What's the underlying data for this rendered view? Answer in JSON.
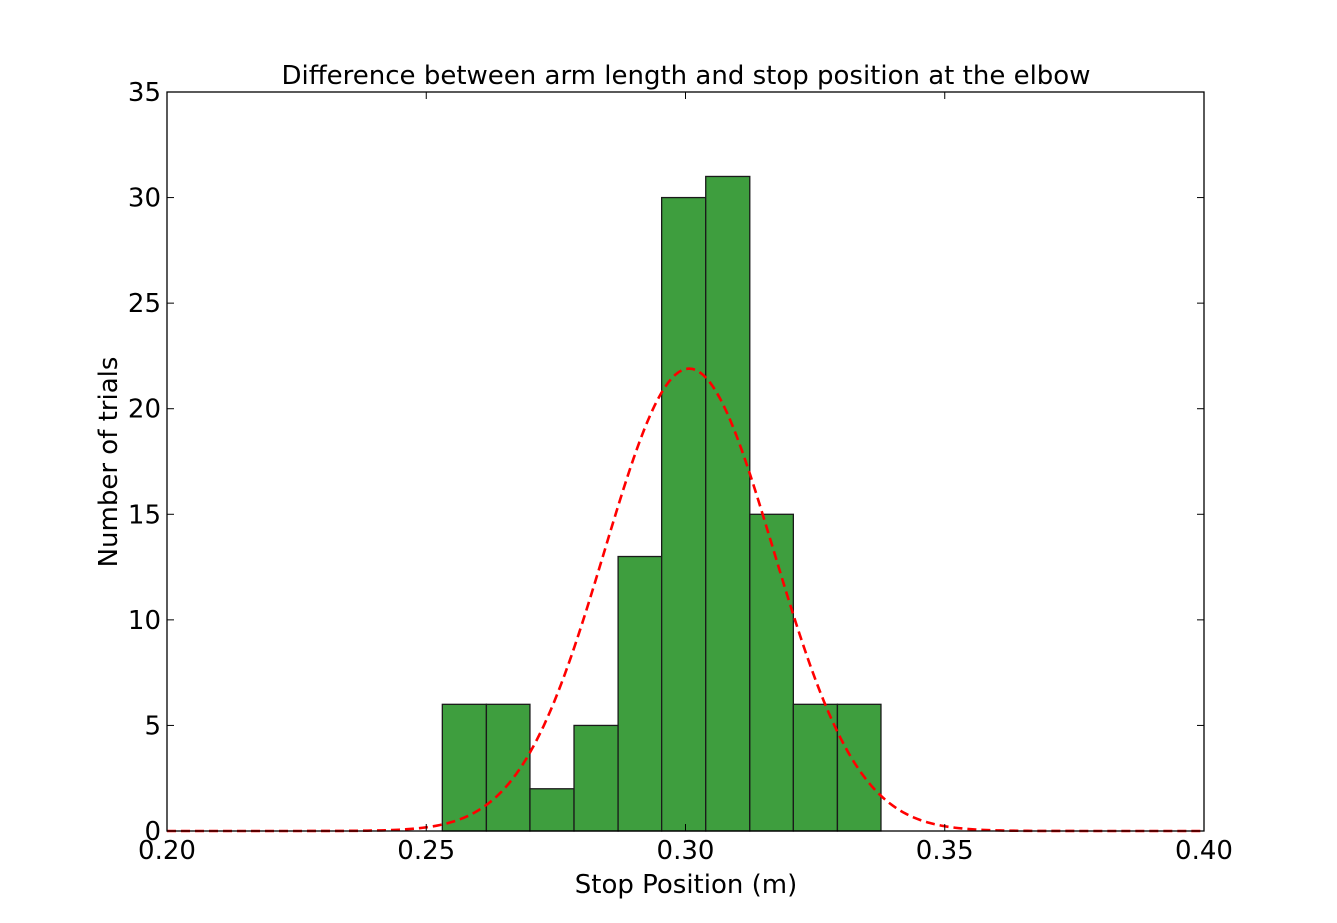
{
  "chart_data": {
    "type": "bar",
    "title": "Difference between arm length and stop position at the elbow",
    "xlabel": "Stop Position (m)",
    "ylabel": "Number of trials",
    "xlim": [
      0.2,
      0.4
    ],
    "ylim": [
      0,
      35
    ],
    "xticks": [
      "0.20",
      "0.25",
      "0.30",
      "0.35",
      "0.40"
    ],
    "xtick_values": [
      0.2,
      0.25,
      0.3,
      0.35,
      0.4
    ],
    "yticks": [
      "0",
      "5",
      "10",
      "15",
      "20",
      "25",
      "30",
      "35"
    ],
    "ytick_values": [
      0,
      5,
      10,
      15,
      20,
      25,
      30,
      35
    ],
    "grid": false,
    "bins": {
      "edges": [
        0.2531,
        0.2616,
        0.27,
        0.2785,
        0.287,
        0.2954,
        0.3039,
        0.3124,
        0.3208,
        0.3293,
        0.3377
      ],
      "counts": [
        6,
        6,
        2,
        5,
        13,
        30,
        31,
        15,
        6,
        6
      ],
      "color": "#3e9e3e",
      "edge_color": "#1a1a1a"
    },
    "fit_curve": {
      "style": "dashed",
      "color": "#ff0000",
      "mean": 0.3007,
      "std": 0.0163,
      "peak": 21.9
    }
  }
}
